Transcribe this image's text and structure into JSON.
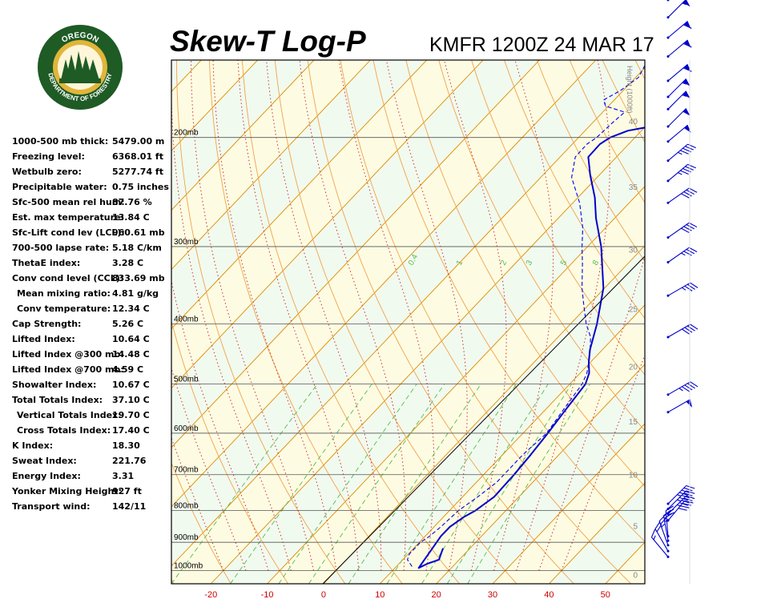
{
  "header": {
    "title": "Skew-T Log-P",
    "station_time": "KMFR 1200Z 24 MAR 17"
  },
  "logo": {
    "top_text": "OREGON",
    "bottom_text": "DEPARTMENT OF FORESTRY",
    "ring_color": "#1e5b25",
    "inner_color": "#e2b53a"
  },
  "indices": [
    {
      "label": "1000-500 mb thick:",
      "value": "5479.00 m"
    },
    {
      "label": "Freezing level:",
      "value": "6368.01 ft"
    },
    {
      "label": "Wetbulb zero:",
      "value": "5277.74 ft"
    },
    {
      "label": "Precipitable water:",
      "value": "0.75 inches"
    },
    {
      "label": "Sfc-500 mean rel hum:",
      "value": "87.76 %"
    },
    {
      "label": "Est. max temperature:",
      "value": "13.84 C"
    },
    {
      "label": "Sfc-Lift cond lev (LCL):",
      "value": "960.61 mb"
    },
    {
      "label": "700-500 lapse rate:",
      "value": "5.18 C/km"
    },
    {
      "label": "ThetaE index:",
      "value": "3.28 C"
    },
    {
      "label": "Conv cond level (CCL):",
      "value": "833.69 mb"
    },
    {
      "label": "Mean mixing ratio:",
      "value": "4.81 g/kg",
      "indent": true
    },
    {
      "label": "Conv temperature:",
      "value": "12.34 C",
      "indent": true
    },
    {
      "label": "Cap Strength:",
      "value": "5.26 C"
    },
    {
      "label": "Lifted Index:",
      "value": "10.64 C"
    },
    {
      "label": "Lifted Index @300 mb:",
      "value": "14.48 C"
    },
    {
      "label": "Lifted Index @700 mb:",
      "value": "4.59 C"
    },
    {
      "label": "Showalter Index:",
      "value": "10.67 C"
    },
    {
      "label": "Total Totals Index:",
      "value": "37.10 C"
    },
    {
      "label": "Vertical Totals Index:",
      "value": "19.70 C",
      "indent": true
    },
    {
      "label": "Cross Totals Index:",
      "value": "17.40 C",
      "indent": true
    },
    {
      "label": "K Index:",
      "value": "18.30"
    },
    {
      "label": "Sweat Index:",
      "value": "221.76"
    },
    {
      "label": "Energy Index:",
      "value": "3.31"
    },
    {
      "label": "Yonker Mixing Height:",
      "value": "927 ft"
    },
    {
      "label": "Transport wind:",
      "value": "142/11"
    }
  ],
  "chart_data": {
    "type": "skew-t",
    "xaxis": {
      "label": "",
      "ticks": [
        -20,
        -10,
        0,
        10,
        20,
        30,
        40,
        50
      ],
      "range": [
        -27,
        57
      ],
      "tick_color": "#cc0000"
    },
    "pressure_levels": [
      {
        "p": 200,
        "label": "200mb"
      },
      {
        "p": 300,
        "label": "300mb"
      },
      {
        "p": 400,
        "label": "400mb"
      },
      {
        "p": 500,
        "label": "500mb"
      },
      {
        "p": 600,
        "label": "600mb"
      },
      {
        "p": 700,
        "label": "700mb"
      },
      {
        "p": 800,
        "label": "800mb"
      },
      {
        "p": 900,
        "label": "900mb"
      },
      {
        "p": 1000,
        "label": "1000mb"
      }
    ],
    "pressure_range": [
      150,
      1050
    ],
    "height_axis": {
      "title": "Height (1000ft)",
      "ticks": [
        {
          "label": "0",
          "p": 1014
        },
        {
          "label": "5",
          "p": 846
        },
        {
          "label": "10",
          "p": 700
        },
        {
          "label": "15",
          "p": 574
        },
        {
          "label": "20",
          "p": 468
        },
        {
          "label": "25",
          "p": 378
        },
        {
          "label": "30",
          "p": 303
        },
        {
          "label": "35",
          "p": 240
        },
        {
          "label": "40",
          "p": 188
        },
        {
          "label": "45",
          "p": 148
        },
        {
          "label": "50",
          "p": 116
        }
      ]
    },
    "mixing_ratio_labels": [
      "0.4",
      "1",
      "2",
      "3",
      "5",
      "8"
    ],
    "background": {
      "isotherm_color": "#e08a00",
      "dry_adiabat_color": "#f2a24a",
      "moist_adiabat_color": "#cc3333",
      "mixing_ratio_color": "#55bb55",
      "band_colors": [
        "#f1faee",
        "#fdfce2"
      ]
    },
    "temperature": {
      "name": "",
      "color": "#0000cc",
      "points": [
        [
          920,
          15.2
        ],
        [
          940,
          15.8
        ],
        [
          960,
          16.4
        ],
        [
          975,
          15.0
        ],
        [
          990,
          14.2
        ],
        [
          880,
          12.8
        ],
        [
          850,
          12.8
        ],
        [
          820,
          13.6
        ],
        [
          800,
          14.6
        ],
        [
          760,
          15.6
        ],
        [
          700,
          15.4
        ],
        [
          650,
          15.0
        ],
        [
          600,
          14.4
        ],
        [
          550,
          13.6
        ],
        [
          500,
          12.8
        ],
        [
          480,
          11.6
        ],
        [
          460,
          9.6
        ],
        [
          440,
          7.8
        ],
        [
          400,
          4.7
        ],
        [
          350,
          -0.2
        ],
        [
          300,
          -7.6
        ],
        [
          270,
          -13.3
        ],
        [
          250,
          -17.0
        ],
        [
          230,
          -21.6
        ],
        [
          215,
          -25.0
        ],
        [
          205,
          -25.1
        ],
        [
          200,
          -24.4
        ],
        [
          195,
          -22.4
        ],
        [
          190,
          -16.8
        ],
        [
          187,
          -12.4
        ],
        [
          185,
          -9.3
        ],
        [
          180,
          -8.8
        ],
        [
          175,
          -8.1
        ],
        [
          170,
          -7.6
        ],
        [
          165,
          -8.2
        ],
        [
          160,
          -8.3
        ],
        [
          155,
          -8.1
        ],
        [
          150,
          -9.0
        ],
        [
          145,
          -9.6
        ],
        [
          138,
          -9.8
        ],
        [
          132,
          -11.0
        ],
        [
          126,
          -12.0
        ],
        [
          120,
          -11.5
        ]
      ]
    },
    "dewpoint": {
      "name": "",
      "color": "#0000ee",
      "points": [
        [
          985,
          12.8
        ],
        [
          960,
          10.8
        ],
        [
          940,
          10.2
        ],
        [
          900,
          10.2
        ],
        [
          880,
          10.8
        ],
        [
          850,
          11.2
        ],
        [
          800,
          11.6
        ],
        [
          760,
          12.7
        ],
        [
          720,
          13.6
        ],
        [
          700,
          13.6
        ],
        [
          650,
          13.6
        ],
        [
          600,
          14.2
        ],
        [
          550,
          13.2
        ],
        [
          500,
          12.2
        ],
        [
          480,
          11.2
        ],
        [
          450,
          8.8
        ],
        [
          420,
          5.8
        ],
        [
          400,
          2.8
        ],
        [
          370,
          -1.2
        ],
        [
          350,
          -4.0
        ],
        [
          320,
          -8.0
        ],
        [
          300,
          -11.0
        ],
        [
          280,
          -14.0
        ],
        [
          255,
          -18.8
        ],
        [
          232,
          -24.5
        ],
        [
          215,
          -27.3
        ],
        [
          205,
          -27.4
        ],
        [
          200,
          -26.8
        ],
        [
          190,
          -26.5
        ],
        [
          182,
          -26.1
        ],
        [
          178,
          -30.5
        ],
        [
          174,
          -31.9
        ],
        [
          168,
          -30.5
        ],
        [
          160,
          -29.5
        ],
        [
          150,
          -30.8
        ],
        [
          140,
          -32.4
        ],
        [
          132,
          -33.5
        ],
        [
          126,
          -34.0
        ]
      ]
    },
    "wind_barbs": [
      {
        "p": 950,
        "dir": 140,
        "spd": 15
      },
      {
        "p": 930,
        "dir": 150,
        "spd": 20
      },
      {
        "p": 910,
        "dir": 160,
        "spd": 25
      },
      {
        "p": 895,
        "dir": 170,
        "spd": 25
      },
      {
        "p": 880,
        "dir": 175,
        "spd": 30
      },
      {
        "p": 830,
        "dir": 220,
        "spd": 40
      },
      {
        "p": 810,
        "dir": 225,
        "spd": 45
      },
      {
        "p": 795,
        "dir": 225,
        "spd": 45
      },
      {
        "p": 780,
        "dir": 225,
        "spd": 45
      },
      {
        "p": 555,
        "dir": 240,
        "spd": 50
      },
      {
        "p": 520,
        "dir": 240,
        "spd": 45
      },
      {
        "p": 420,
        "dir": 240,
        "spd": 40
      },
      {
        "p": 360,
        "dir": 240,
        "spd": 35
      },
      {
        "p": 318,
        "dir": 235,
        "spd": 35
      },
      {
        "p": 290,
        "dir": 235,
        "spd": 40
      },
      {
        "p": 255,
        "dir": 235,
        "spd": 40
      },
      {
        "p": 235,
        "dir": 230,
        "spd": 45
      },
      {
        "p": 218,
        "dir": 230,
        "spd": 45
      },
      {
        "p": 203,
        "dir": 230,
        "spd": 50
      },
      {
        "p": 192,
        "dir": 225,
        "spd": 50
      },
      {
        "p": 180,
        "dir": 225,
        "spd": 55
      },
      {
        "p": 172,
        "dir": 225,
        "spd": 55
      },
      {
        "p": 162,
        "dir": 230,
        "spd": 60
      },
      {
        "p": 148,
        "dir": 230,
        "spd": 60
      },
      {
        "p": 138,
        "dir": 230,
        "spd": 60
      },
      {
        "p": 128,
        "dir": 225,
        "spd": 55
      },
      {
        "p": 120,
        "dir": 225,
        "spd": 50
      }
    ]
  }
}
